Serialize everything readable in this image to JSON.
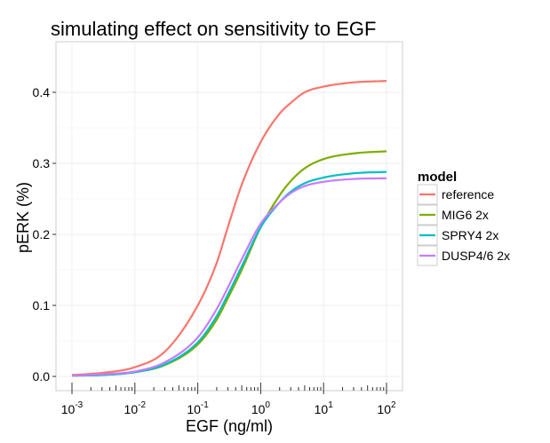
{
  "chart_data": {
    "type": "line",
    "title": "simulating effect on sensitivity to EGF",
    "xlabel": "EGF (ng/ml)",
    "ylabel": "pERK (%)",
    "x_scale": "log10",
    "xlim_exp": [
      -3,
      2
    ],
    "ylim": [
      -0.02,
      0.46
    ],
    "x_tick_exponents": [
      -3,
      -2,
      -1,
      0,
      1,
      2
    ],
    "y_ticks": [
      0.0,
      0.1,
      0.2,
      0.3,
      0.4
    ],
    "y_tick_labels": [
      "0.0",
      "0.1",
      "0.2",
      "0.3",
      "0.4"
    ],
    "grid": true,
    "legend": {
      "title": "model",
      "position": "right"
    },
    "series": [
      {
        "name": "reference",
        "color": "#F8766D",
        "x": [
          0.001,
          0.003,
          0.01,
          0.03,
          0.1,
          0.2,
          0.3,
          0.5,
          1,
          2,
          3,
          5,
          10,
          30,
          100
        ],
        "y": [
          0.002,
          0.005,
          0.013,
          0.035,
          0.1,
          0.16,
          0.21,
          0.27,
          0.33,
          0.37,
          0.385,
          0.4,
          0.408,
          0.414,
          0.416
        ]
      },
      {
        "name": "MIG6 2x",
        "color": "#7CAE00",
        "x": [
          0.001,
          0.003,
          0.01,
          0.03,
          0.1,
          0.2,
          0.3,
          0.5,
          1,
          2,
          3,
          5,
          10,
          30,
          100
        ],
        "y": [
          0.001,
          0.002,
          0.006,
          0.016,
          0.045,
          0.08,
          0.11,
          0.15,
          0.21,
          0.255,
          0.275,
          0.293,
          0.306,
          0.314,
          0.317
        ]
      },
      {
        "name": "SPRY4 2x",
        "color": "#00BFC4",
        "x": [
          0.001,
          0.003,
          0.01,
          0.03,
          0.1,
          0.2,
          0.3,
          0.5,
          1,
          2,
          3,
          5,
          10,
          30,
          100
        ],
        "y": [
          0.001,
          0.002,
          0.006,
          0.017,
          0.048,
          0.085,
          0.115,
          0.155,
          0.21,
          0.245,
          0.26,
          0.272,
          0.28,
          0.286,
          0.288
        ]
      },
      {
        "name": "DUSP4/6 2x",
        "color": "#C77CFF",
        "x": [
          0.001,
          0.003,
          0.01,
          0.03,
          0.1,
          0.2,
          0.3,
          0.5,
          1,
          2,
          3,
          5,
          10,
          30,
          100
        ],
        "y": [
          0.001,
          0.003,
          0.007,
          0.02,
          0.055,
          0.095,
          0.125,
          0.165,
          0.215,
          0.245,
          0.258,
          0.268,
          0.274,
          0.278,
          0.279
        ]
      }
    ]
  }
}
